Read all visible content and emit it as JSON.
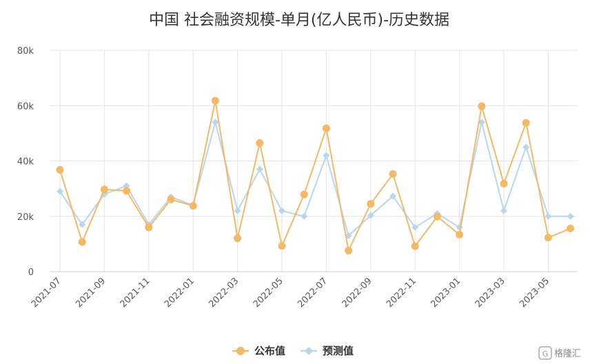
{
  "chart_data": {
    "type": "line",
    "title": "中国 社会融资规模-单月(亿人民币)-历史数据",
    "xlabel": "",
    "ylabel": "",
    "ylim": [
      0,
      80000
    ],
    "y_ticks": [
      0,
      20000,
      40000,
      60000,
      80000
    ],
    "y_tick_labels": [
      "0",
      "20k",
      "40k",
      "60k",
      "80k"
    ],
    "x": [
      "2021-07",
      "2021-08",
      "2021-09",
      "2021-10",
      "2021-11",
      "2021-12",
      "2022-01",
      "2022-02",
      "2022-03",
      "2022-04",
      "2022-05",
      "2022-06",
      "2022-07",
      "2022-08",
      "2022-09",
      "2022-10",
      "2022-11",
      "2022-12",
      "2023-01",
      "2023-02",
      "2023-03",
      "2023-04",
      "2023-05",
      "2023-06"
    ],
    "x_tick_labels": [
      "2021-07",
      "2021-09",
      "2021-11",
      "2022-01",
      "2022-03",
      "2022-05",
      "2022-07",
      "2022-09",
      "2022-11",
      "2023-01",
      "2023-03",
      "2023-05"
    ],
    "grid": true,
    "legend_position": "bottom-center",
    "series": [
      {
        "name": "公布值",
        "color": "#f5b865",
        "marker": "circle",
        "values": [
          36800,
          10700,
          29700,
          29200,
          16000,
          26100,
          23800,
          61800,
          12100,
          46500,
          9300,
          27900,
          51800,
          7600,
          24500,
          35300,
          9200,
          19900,
          13400,
          59800,
          31800,
          53800,
          12300,
          15600
        ]
      },
      {
        "name": "预测值",
        "color": "#b8d6ee",
        "marker": "diamond",
        "values": [
          29000,
          17000,
          28000,
          31000,
          17000,
          27000,
          24000,
          54000,
          22000,
          37000,
          22000,
          20000,
          42000,
          13000,
          20300,
          27300,
          16000,
          21000,
          16000,
          54000,
          22000,
          45000,
          20000,
          20000
        ]
      }
    ]
  },
  "watermark": {
    "text": "格隆汇",
    "icon": "gelonghui-logo-icon"
  }
}
